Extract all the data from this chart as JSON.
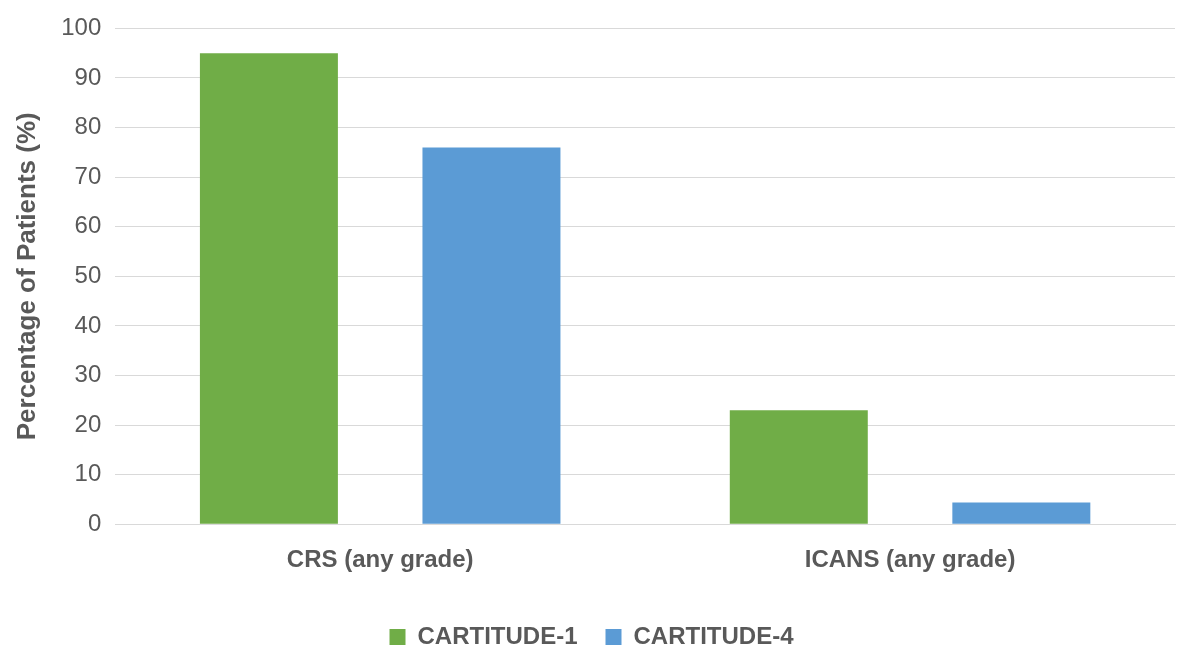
{
  "chart_data": {
    "type": "bar",
    "ylabel": "Percentage of Patients (%)",
    "categories": [
      "CRS (any grade)",
      "ICANS (any grade)"
    ],
    "series": [
      {
        "name": "CARTITUDE-1",
        "color": "#70ad47",
        "values": [
          95,
          23
        ]
      },
      {
        "name": "CARTITUDE-4",
        "color": "#5b9bd5",
        "values": [
          76,
          4.4
        ]
      }
    ],
    "ylim": [
      0,
      100
    ],
    "yticks": [
      0,
      10,
      20,
      30,
      40,
      50,
      60,
      70,
      80,
      90,
      100
    ],
    "grid": "y",
    "legend": "bottom"
  }
}
